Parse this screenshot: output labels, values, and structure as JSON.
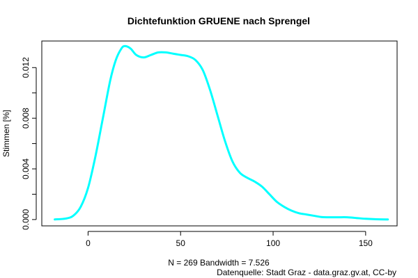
{
  "chart_data": {
    "type": "line",
    "title": "Dichtefunktion GRUENE nach Sprengel",
    "xlabel": "N = 269   Bandwidth = 7.526",
    "ylabel": "Stimmen [%]",
    "caption": "Datenquelle: Stadt Graz - data.graz.gv.at, CC-by",
    "xlim": [
      -25,
      167
    ],
    "ylim": [
      -0.0005,
      0.0141
    ],
    "x_ticks": [
      0,
      50,
      100,
      150
    ],
    "x_tick_labels": [
      "0",
      "50",
      "100",
      "150"
    ],
    "y_ticks": [
      0.0,
      0.002,
      0.004,
      0.006,
      0.008,
      0.01,
      0.012
    ],
    "y_tick_labels": [
      "0.000",
      "",
      "0.004",
      "",
      "0.008",
      "",
      "0.012"
    ],
    "grid": false,
    "series": [
      {
        "color": "#00ffff",
        "x": [
          -18,
          -12,
          -8,
          -4,
          0,
          4,
          8,
          12,
          15,
          18,
          20,
          23,
          26,
          30,
          34,
          38,
          42,
          46,
          50,
          54,
          58,
          62,
          66,
          70,
          74,
          78,
          82,
          86,
          90,
          94,
          98,
          102,
          106,
          110,
          114,
          118,
          122,
          126,
          130,
          135,
          140,
          145,
          150,
          156,
          162
        ],
        "y": [
          1e-05,
          8e-05,
          0.0003,
          0.001,
          0.0025,
          0.005,
          0.008,
          0.011,
          0.0126,
          0.0135,
          0.0137,
          0.0135,
          0.013,
          0.0128,
          0.013,
          0.0132,
          0.0132,
          0.0131,
          0.013,
          0.0129,
          0.0126,
          0.0118,
          0.0102,
          0.0082,
          0.0062,
          0.0046,
          0.0037,
          0.0033,
          0.003,
          0.0026,
          0.002,
          0.0014,
          0.001,
          0.0007,
          0.0005,
          0.0004,
          0.0003,
          0.0002,
          0.00018,
          0.00018,
          0.00018,
          0.00012,
          6e-05,
          2e-05,
          1e-05
        ]
      }
    ]
  }
}
